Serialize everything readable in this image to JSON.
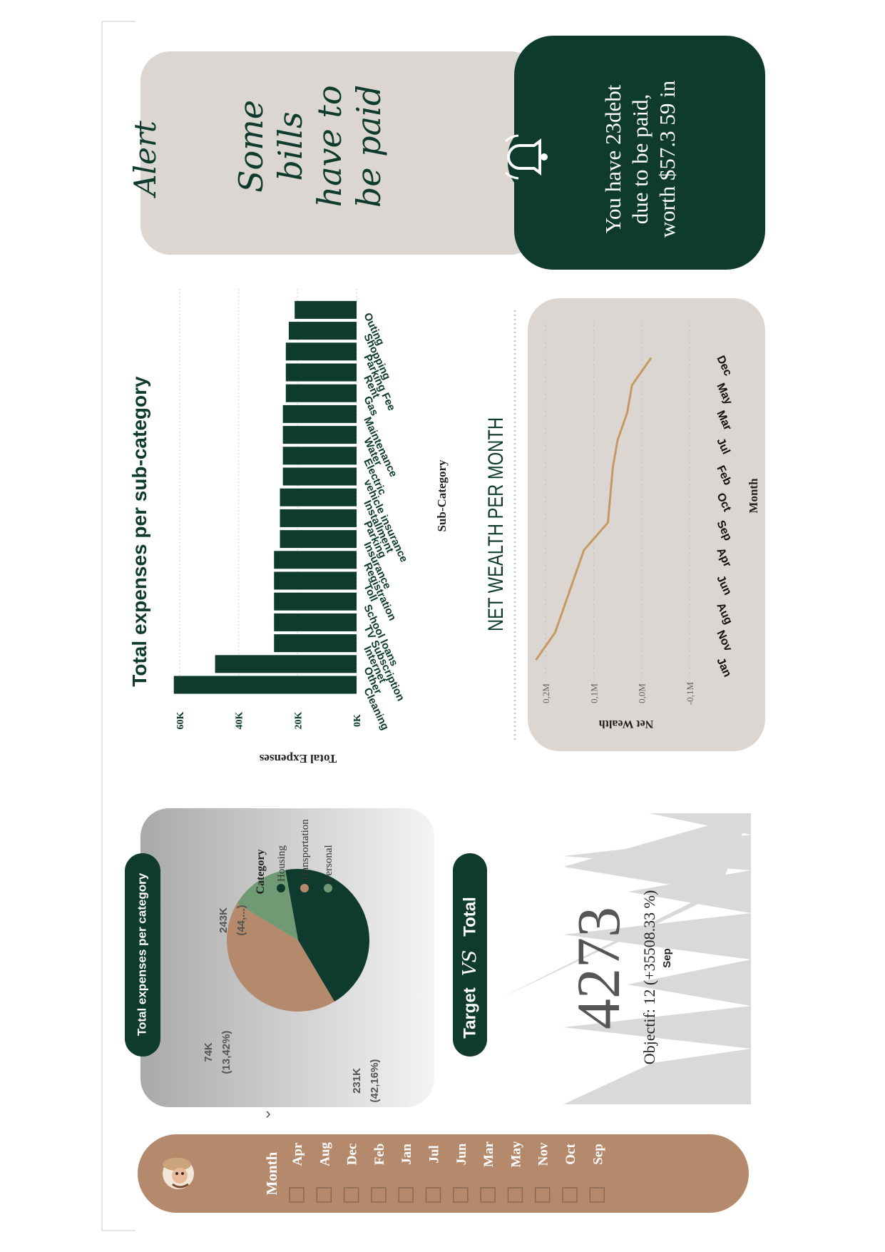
{
  "colors": {
    "dark_green": "#0e3b2e",
    "tan": "#b5896c",
    "sage": "#6f9a74",
    "beige": "#dcd6d2",
    "gold_line": "#c49a62",
    "gray_peak": "#d9d9d9"
  },
  "slicer": {
    "title": "Month",
    "avatar_icon": "avatar-icon",
    "items": [
      "Apr",
      "Aug",
      "Dec",
      "Feb",
      "Jan",
      "Jul",
      "Jun",
      "Mar",
      "May",
      "Nov",
      "Oct",
      "Sep"
    ]
  },
  "pie_card": {
    "header": "Total expenses per category",
    "legend_title": "Category",
    "chevron": "›",
    "labels": [
      {
        "value": "243K",
        "pct": "(44,...)"
      },
      {
        "value": "231K",
        "pct": "(42,16%)"
      },
      {
        "value": "74K",
        "pct": "(13,42%)"
      }
    ]
  },
  "target": {
    "header_left": "Target",
    "header_vs": "VS",
    "header_right": "Total",
    "value": "4273",
    "objective": "Objectif: 12 (+35508.33 %)",
    "month": "Sep"
  },
  "bar_card": {
    "title": "Total expenses per sub-category"
  },
  "alert": {
    "title": "Alert",
    "handwritten": [
      "Some",
      "bills",
      "have to",
      "be paid"
    ],
    "message": [
      "You have 23debt",
      "due to be paid,",
      "worth  $57.3 59  in"
    ],
    "bell_icon": "bell-icon"
  },
  "line_card": {
    "title": "NET WEALTH PER MONTH"
  },
  "chart_data": [
    {
      "type": "pie",
      "title": "Total expenses per category",
      "legend_title": "Category",
      "series": [
        {
          "name": "Housing",
          "value": 243,
          "label": "243K",
          "pct_label": "(44,...)"
        },
        {
          "name": "Transportation",
          "value": 231,
          "label": "231K",
          "pct_label": "(42,16%)"
        },
        {
          "name": "Personal",
          "value": 74,
          "label": "74K",
          "pct_label": "(13,42%)"
        }
      ]
    },
    {
      "type": "bar",
      "title": "Total expenses per sub-category",
      "xlabel": "Sub-Category",
      "ylabel": "Total Expenses",
      "ylim": [
        0,
        70000
      ],
      "yticks": [
        "0K",
        "20K",
        "40K",
        "60K"
      ],
      "categories": [
        "Cleaning",
        "Other",
        "Internet",
        "TV Subscription",
        "School loans",
        "Toll",
        "Registration",
        "Insurance",
        "Parking",
        "Installment",
        "vehicle insurance",
        "Electric",
        "Water",
        "Maintenance",
        "Gas",
        "Rent",
        "Parking Fee",
        "Shopping",
        "Outing"
      ],
      "values": [
        62000,
        48000,
        28000,
        28000,
        28000,
        28000,
        28000,
        26000,
        26000,
        26000,
        25000,
        25000,
        25000,
        25000,
        24000,
        24000,
        24000,
        23000,
        21000
      ]
    },
    {
      "type": "line",
      "title": "NET WEALTH PER MONTH",
      "xlabel": "Month",
      "ylabel": "Net Wealth",
      "yticks": [
        "0,2M",
        "0,1M",
        "0,0M",
        "-0,1M"
      ],
      "x": [
        "Jan",
        "Nov",
        "Aug",
        "Jun",
        "Apr",
        "Sep",
        "Oct",
        "Feb",
        "Jul",
        "Mar",
        "May",
        "Dec"
      ],
      "values": [
        0.22,
        0.18,
        0.16,
        0.14,
        0.12,
        0.07,
        0.065,
        0.06,
        0.05,
        0.03,
        0.02,
        -0.02
      ]
    }
  ]
}
